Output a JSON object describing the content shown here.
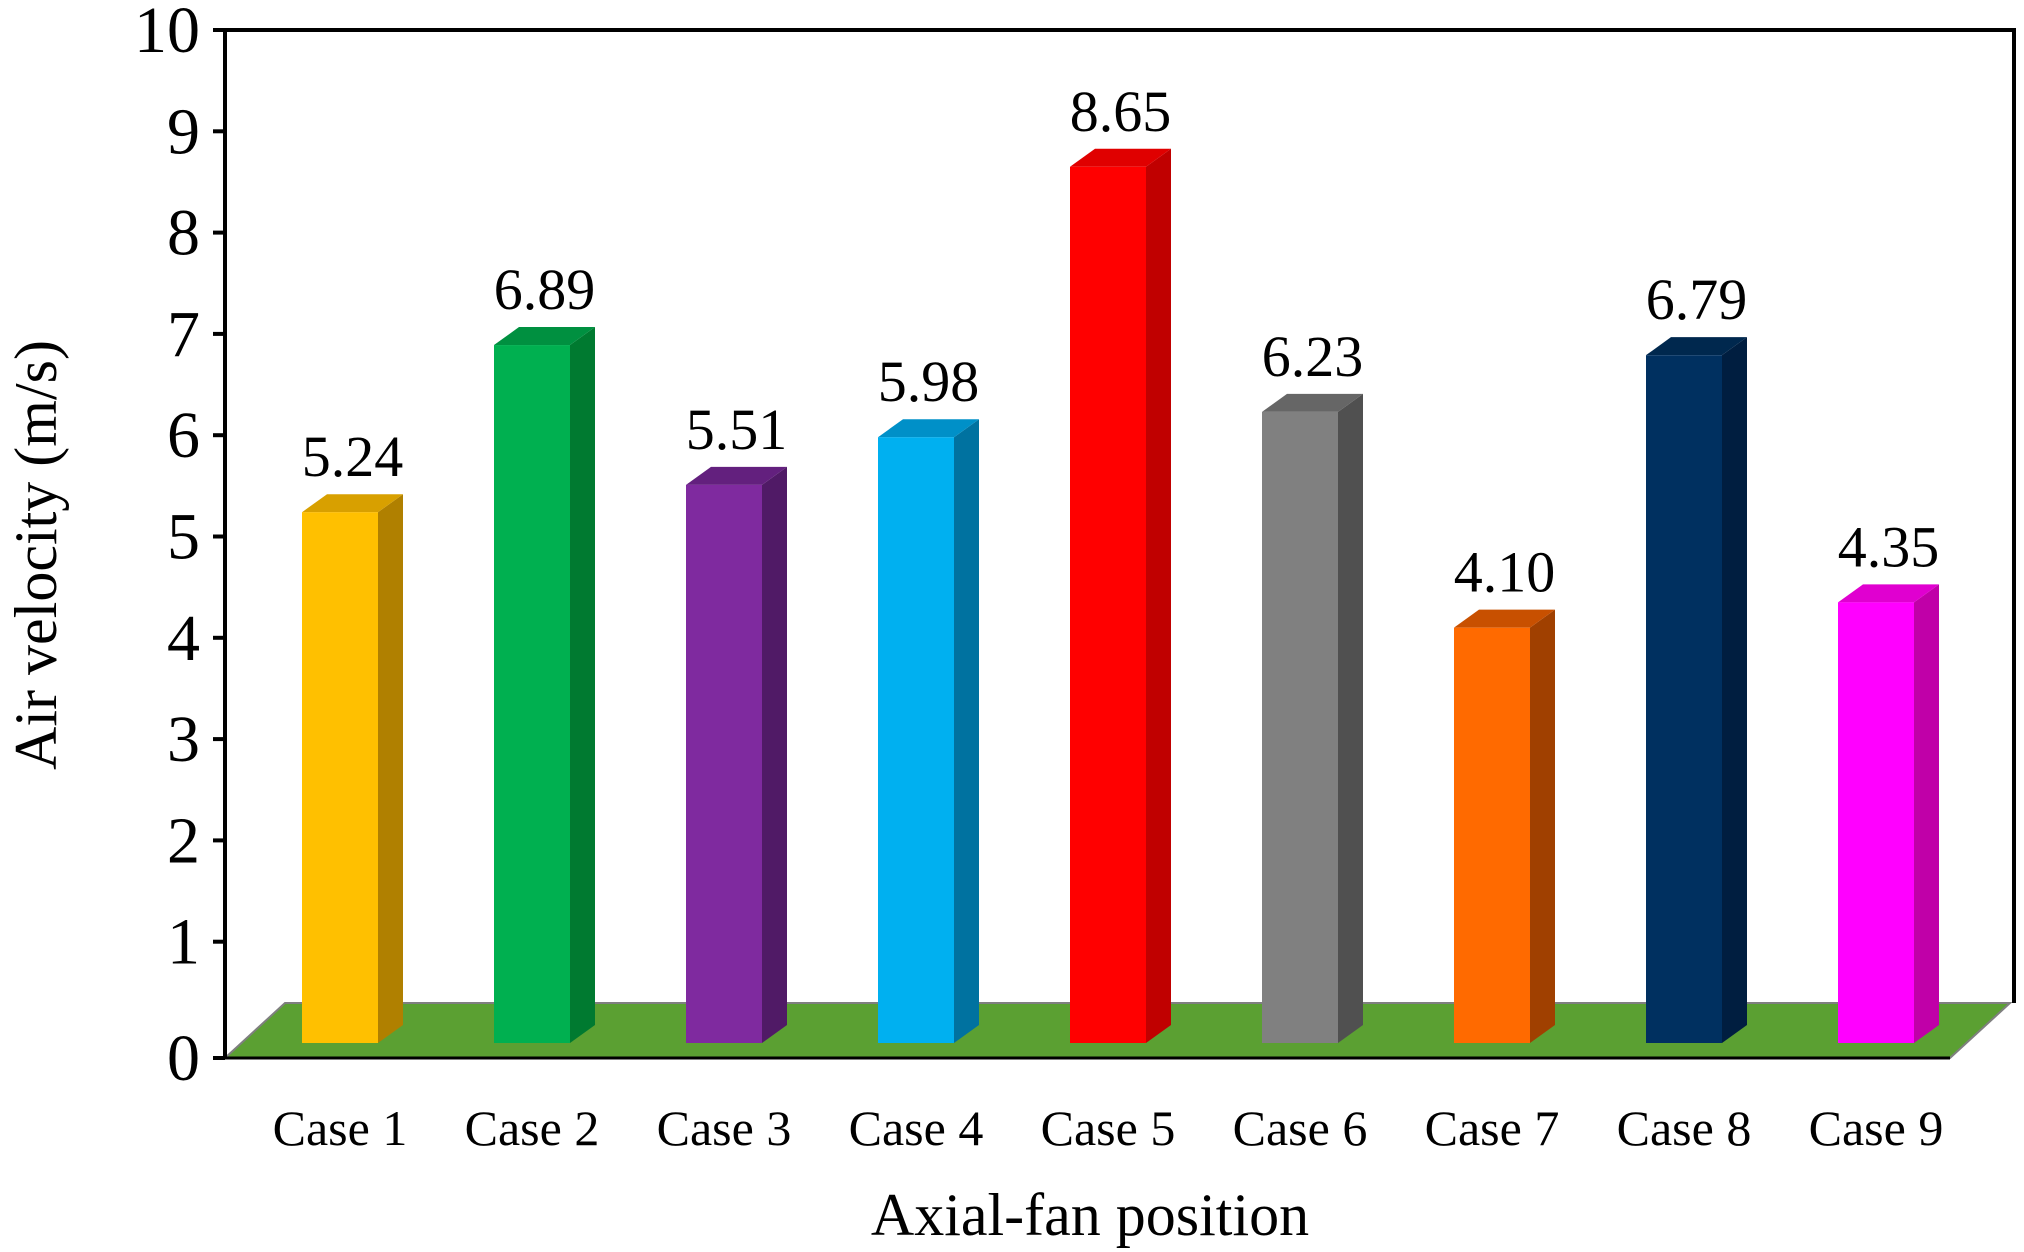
{
  "chart_data": {
    "type": "bar",
    "title": "",
    "xlabel": "Axial-fan position",
    "ylabel": "Air velocity (m/s)",
    "ylim": [
      0,
      10
    ],
    "yticks": [
      0,
      1,
      2,
      3,
      4,
      5,
      6,
      7,
      8,
      9,
      10
    ],
    "categories": [
      "Case 1",
      "Case 2",
      "Case 3",
      "Case 4",
      "Case 5",
      "Case 6",
      "Case 7",
      "Case 8",
      "Case 9"
    ],
    "values": [
      5.24,
      6.89,
      5.51,
      5.98,
      8.65,
      6.23,
      4.1,
      6.79,
      4.35
    ],
    "value_labels": [
      "5.24",
      "6.89",
      "5.51",
      "5.98",
      "8.65",
      "6.23",
      "4.10",
      "6.79",
      "4.35"
    ],
    "grid": false,
    "legend": "none",
    "colors": {
      "front": [
        "#FFC000",
        "#00B050",
        "#7F2A9F",
        "#00B0F0",
        "#FF0000",
        "#808080",
        "#FF6A00",
        "#003060",
        "#FF00FF"
      ],
      "side": [
        "#B08000",
        "#007A30",
        "#501A66",
        "#0072A0",
        "#C00000",
        "#505050",
        "#A04000",
        "#001E40",
        "#C000A8"
      ],
      "top": [
        "#D8A000",
        "#009040",
        "#63207E",
        "#0090C8",
        "#E00000",
        "#666666",
        "#C85000",
        "#00284E",
        "#E000D0"
      ],
      "floor": "#5BA032",
      "axis": "#000000"
    }
  }
}
